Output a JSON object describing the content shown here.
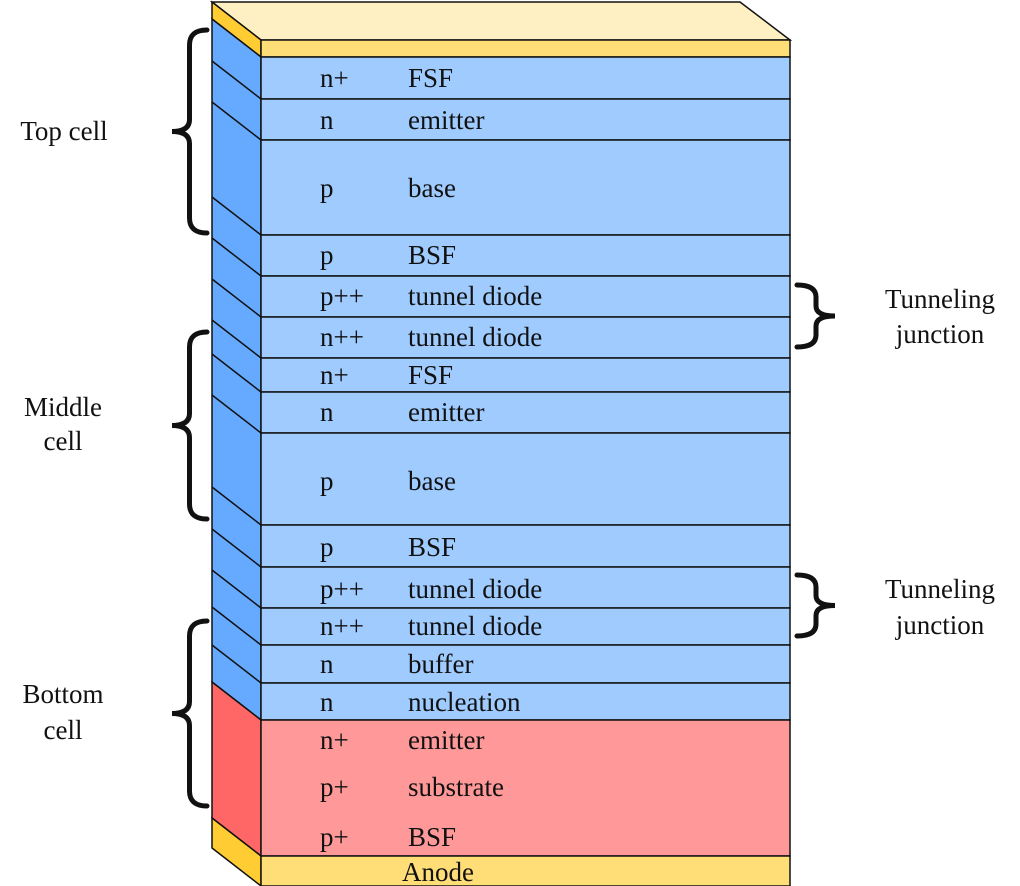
{
  "layers": [
    {
      "doping": "n+",
      "name": "FSF"
    },
    {
      "doping": "n",
      "name": "emitter"
    },
    {
      "doping": "p",
      "name": "base"
    },
    {
      "doping": "p",
      "name": "BSF"
    },
    {
      "doping": "p++",
      "name": "tunnel diode"
    },
    {
      "doping": "n++",
      "name": "tunnel diode"
    },
    {
      "doping": "n+",
      "name": "FSF"
    },
    {
      "doping": "n",
      "name": "emitter"
    },
    {
      "doping": "p",
      "name": "base"
    },
    {
      "doping": "p",
      "name": "BSF"
    },
    {
      "doping": "p++",
      "name": "tunnel diode"
    },
    {
      "doping": "n++",
      "name": "tunnel diode"
    },
    {
      "doping": "n",
      "name": "buffer"
    },
    {
      "doping": "n",
      "name": "nucleation"
    },
    {
      "doping": "n+",
      "name": "emitter"
    },
    {
      "doping": "p+",
      "name": "substrate"
    },
    {
      "doping": "p+",
      "name": "BSF"
    }
  ],
  "contact": {
    "bottom": "Anode"
  },
  "groups": {
    "top_cell": [
      "Top cell"
    ],
    "middle_cell": [
      "Middle",
      "cell"
    ],
    "bottom_cell": [
      "Bottom",
      "cell"
    ],
    "tunnel_1": [
      "Tunneling",
      "junction"
    ],
    "tunnel_2": [
      "Tunneling",
      "junction"
    ]
  },
  "colors": {
    "epi_front": "#9fcbff",
    "epi_side": "#66aaff",
    "substrate_front": "#ff9999",
    "substrate_side": "#ff6666",
    "contact_front": "#ffdd77",
    "contact_top": "#fff0c4",
    "contact_side": "#ffcc33"
  }
}
